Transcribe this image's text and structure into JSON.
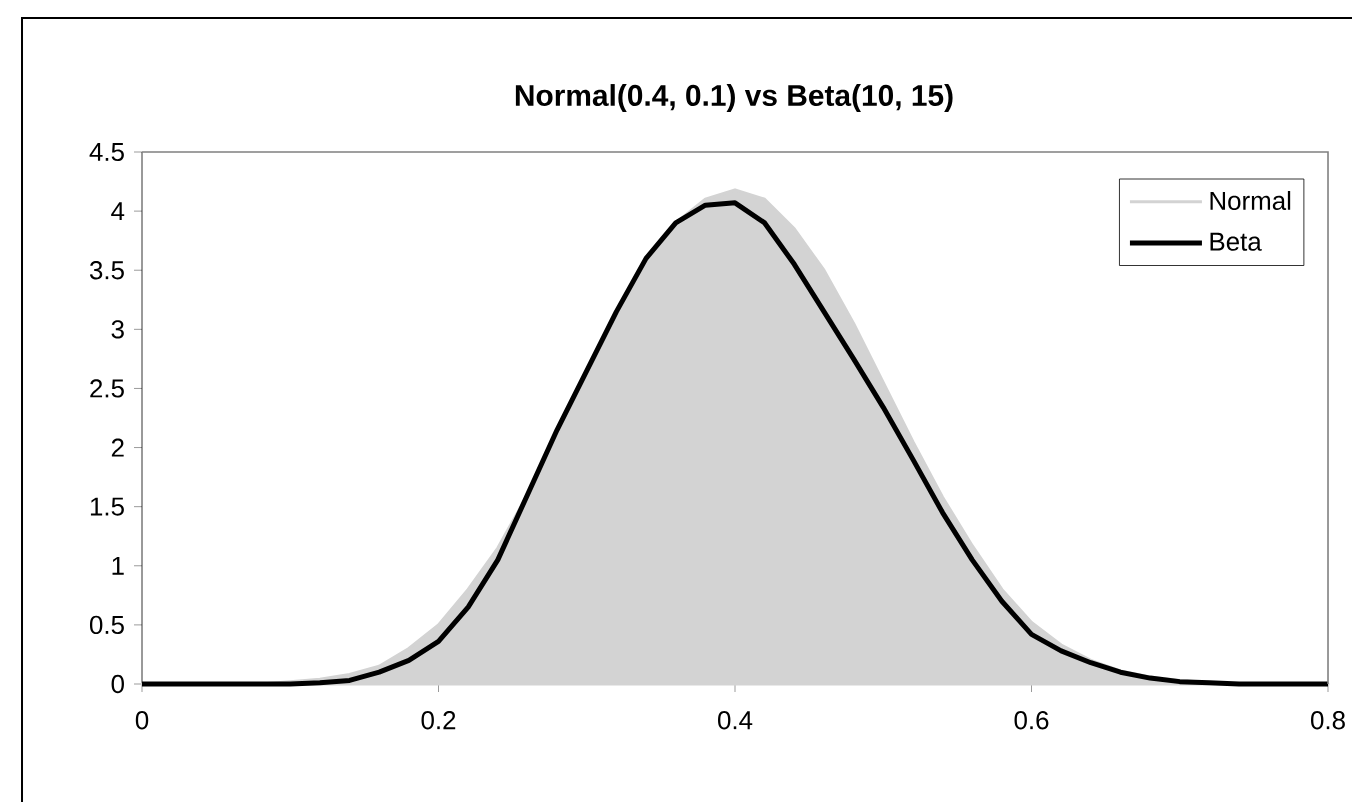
{
  "chart_data": {
    "type": "line",
    "title": "Normal(0.4, 0.1) vs Beta(10, 15)",
    "x": [
      0,
      0.02,
      0.04,
      0.06,
      0.08,
      0.1,
      0.12,
      0.14,
      0.16,
      0.18,
      0.2,
      0.22,
      0.24,
      0.26,
      0.28,
      0.3,
      0.32,
      0.34,
      0.36,
      0.38,
      0.4,
      0.42,
      0.44,
      0.46,
      0.48,
      0.5,
      0.52,
      0.54,
      0.56,
      0.58,
      0.6,
      0.62,
      0.64,
      0.66,
      0.68,
      0.7,
      0.72,
      0.74,
      0.76,
      0.78,
      0.8
    ],
    "series": [
      {
        "name": "Normal",
        "type": "area",
        "color": "#d3d3d3",
        "values": [
          0,
          0,
          0,
          0,
          0,
          0.02,
          0.04,
          0.08,
          0.15,
          0.3,
          0.5,
          0.8,
          1.15,
          1.6,
          2.1,
          2.6,
          3.1,
          3.55,
          3.9,
          4.1,
          4.18,
          4.1,
          3.85,
          3.5,
          3.05,
          2.55,
          2.05,
          1.58,
          1.17,
          0.8,
          0.52,
          0.33,
          0.2,
          0.11,
          0.06,
          0.03,
          0.01,
          0,
          0,
          0,
          0
        ]
      },
      {
        "name": "Beta",
        "color": "#000000",
        "values": [
          0,
          0,
          0,
          0,
          0,
          0,
          0.01,
          0.03,
          0.1,
          0.2,
          0.36,
          0.65,
          1.05,
          1.6,
          2.15,
          2.65,
          3.15,
          3.6,
          3.9,
          4.05,
          4.07,
          3.9,
          3.55,
          3.15,
          2.75,
          2.34,
          1.9,
          1.45,
          1.05,
          0.7,
          0.42,
          0.28,
          0.18,
          0.1,
          0.05,
          0.02,
          0.01,
          0,
          0,
          0,
          0
        ]
      }
    ],
    "xlim": [
      0,
      0.8
    ],
    "ylim": [
      0,
      4.5
    ],
    "xticks": [
      0,
      0.2,
      0.4,
      0.6,
      0.8
    ],
    "yticks": [
      0,
      0.5,
      1,
      1.5,
      2,
      2.5,
      3,
      3.5,
      4,
      4.5
    ],
    "legend": "top right"
  }
}
